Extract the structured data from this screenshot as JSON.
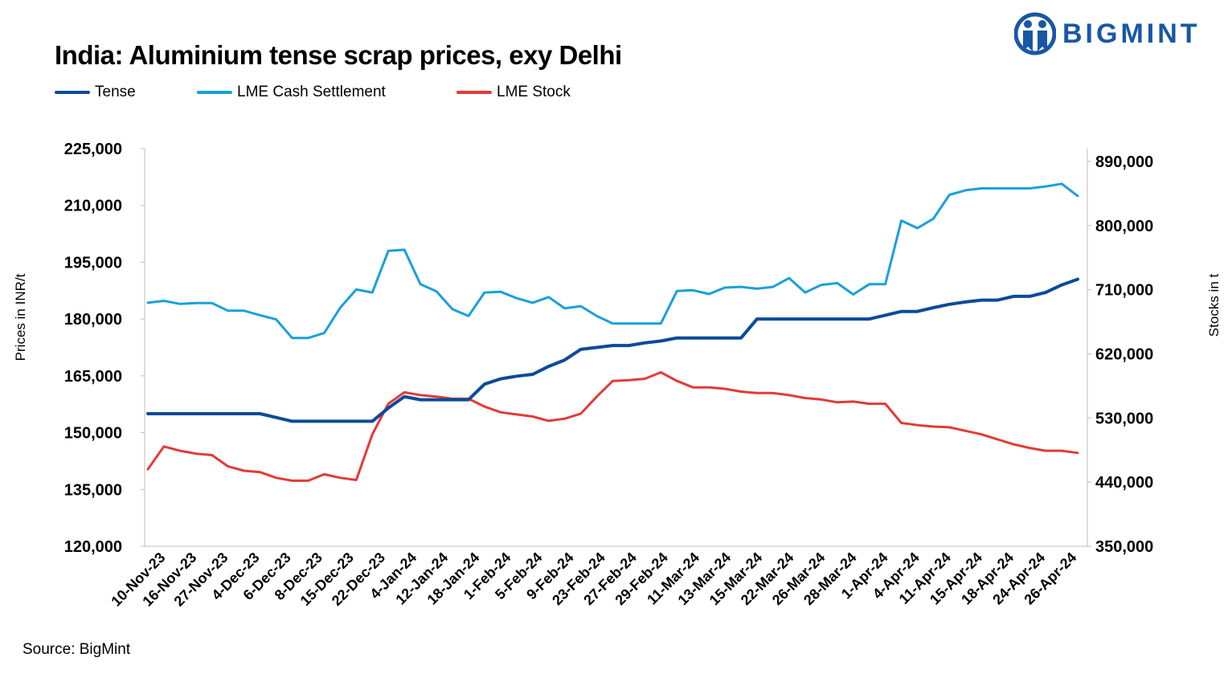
{
  "chart_data": {
    "type": "line",
    "title": "India: Aluminium tense scrap prices, exy Delhi",
    "source": "Source: BigMint",
    "logo_text": "BIGMINT",
    "ylabel_left": "Prices in INR/t",
    "ylabel_right": "Stocks in t",
    "ylim_left": [
      120000,
      225000
    ],
    "ylim_right": [
      350000,
      908000
    ],
    "yticks_left": [
      "120,000",
      "135,000",
      "150,000",
      "165,000",
      "180,000",
      "195,000",
      "210,000",
      "225,000"
    ],
    "yticks_left_values": [
      120000,
      135000,
      150000,
      165000,
      180000,
      195000,
      210000,
      225000
    ],
    "yticks_right": [
      "350,000",
      "440,000",
      "530,000",
      "620,000",
      "710,000",
      "800,000",
      "890,000"
    ],
    "yticks_right_values": [
      350000,
      440000,
      530000,
      620000,
      710000,
      800000,
      890000
    ],
    "xtick_labels": [
      "10-Nov-23",
      "16-Nov-23",
      "27-Nov-23",
      "4-Dec-23",
      "6-Dec-23",
      "8-Dec-23",
      "15-Dec-23",
      "22-Dec-23",
      "4-Jan-24",
      "12-Jan-24",
      "18-Jan-24",
      "1-Feb-24",
      "5-Feb-24",
      "9-Feb-24",
      "23-Feb-24",
      "27-Feb-24",
      "29-Feb-24",
      "11-Mar-24",
      "13-Mar-24",
      "15-Mar-24",
      "22-Mar-24",
      "26-Mar-24",
      "28-Mar-24",
      "1-Apr-24",
      "4-Apr-24",
      "11-Apr-24",
      "15-Apr-24",
      "18-Apr-24",
      "24-Apr-24",
      "26-Apr-24"
    ],
    "series": [
      {
        "name": "Tense",
        "axis": "left",
        "color": "#0a4a9b",
        "values": [
          155000,
          155000,
          155000,
          155000,
          155000,
          155000,
          155000,
          155000,
          154000,
          153000,
          153000,
          153000,
          153000,
          153000,
          153000,
          156500,
          159500,
          158700,
          158700,
          158700,
          158700,
          162800,
          164200,
          164900,
          165400,
          167500,
          169200,
          172000,
          172500,
          173000,
          173000,
          173700,
          174200,
          175000,
          175000,
          175000,
          175000,
          175000,
          180000,
          180000,
          180000,
          180000,
          180000,
          180000,
          180000,
          180000,
          181000,
          182000,
          182000,
          183000,
          183900,
          184500,
          185000,
          185000,
          186000,
          186000,
          187000,
          189000,
          190500
        ]
      },
      {
        "name": "LME Cash Settlement",
        "axis": "left",
        "color": "#1aa0db",
        "values": [
          184300,
          184800,
          184000,
          184200,
          184200,
          182200,
          182200,
          181000,
          179900,
          175000,
          175000,
          176300,
          183000,
          187800,
          187000,
          198000,
          198300,
          189200,
          187300,
          182600,
          180800,
          187000,
          187200,
          185500,
          184300,
          185800,
          182800,
          183400,
          180800,
          178800,
          178800,
          178800,
          178800,
          187400,
          187600,
          186600,
          188300,
          188500,
          188000,
          188500,
          190800,
          187000,
          189000,
          189500,
          186500,
          189200,
          189200,
          206000,
          204000,
          206500,
          212800,
          214000,
          214500,
          214500,
          214500,
          214500,
          215000,
          215700,
          212500
        ]
      },
      {
        "name": "LME Stock",
        "axis": "right",
        "color": "#e23b35",
        "values": [
          458000,
          490000,
          484000,
          480000,
          478000,
          462000,
          456000,
          454000,
          446000,
          442000,
          442000,
          451000,
          446000,
          443000,
          507000,
          550000,
          566000,
          562000,
          560000,
          557000,
          557000,
          546000,
          538000,
          535000,
          532000,
          526000,
          529000,
          536000,
          560000,
          582000,
          583000,
          585000,
          594000,
          582000,
          573000,
          573000,
          571000,
          567000,
          565000,
          565000,
          562000,
          558000,
          556000,
          552000,
          553000,
          550000,
          550000,
          523000,
          520000,
          518000,
          517000,
          512000,
          507000,
          500000,
          493000,
          488000,
          484000,
          484000,
          481000
        ]
      }
    ]
  }
}
